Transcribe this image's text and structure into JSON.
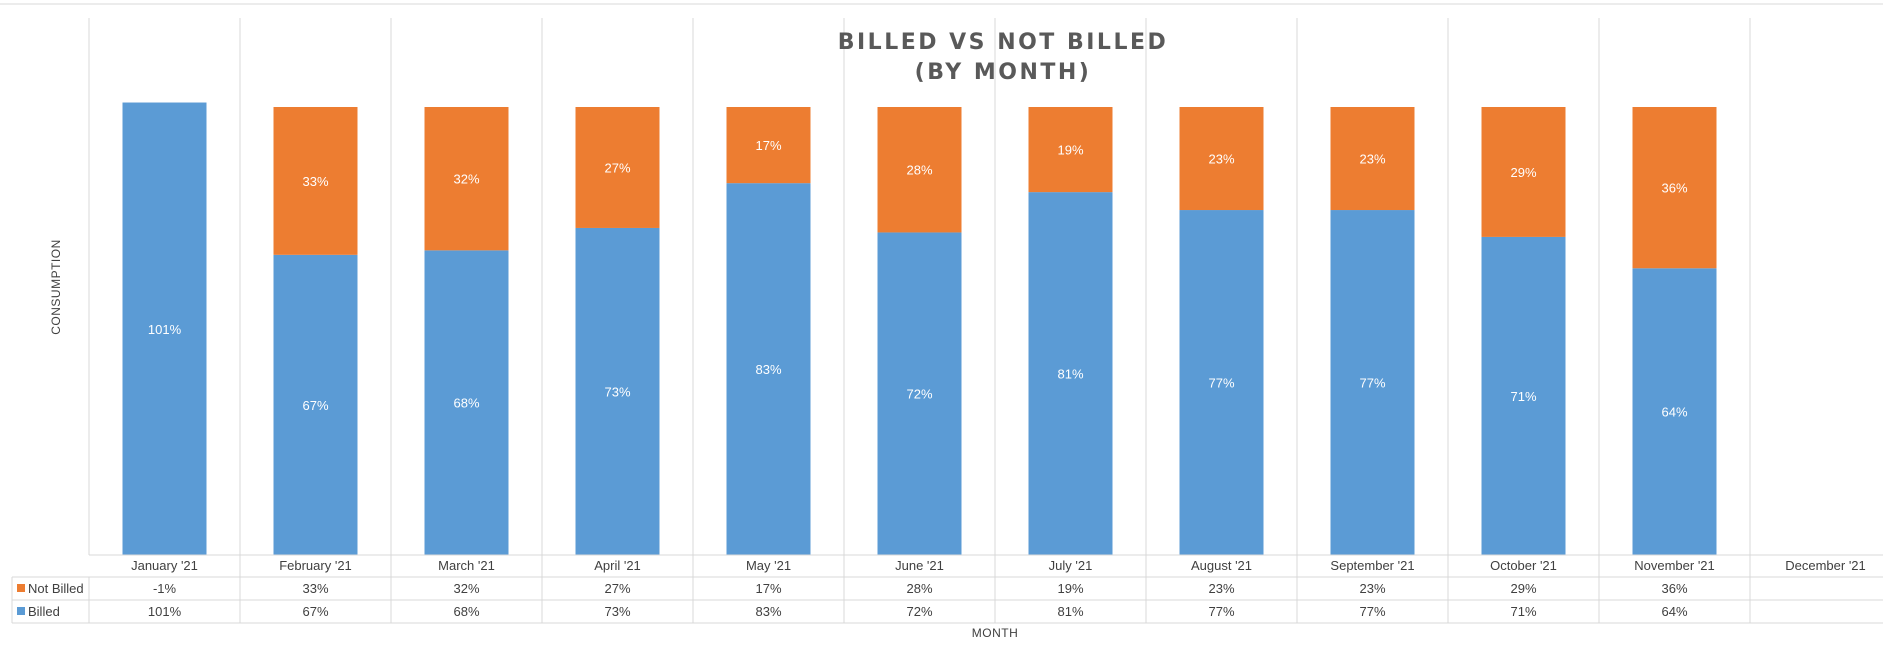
{
  "chart_data": {
    "type": "bar",
    "stacked": true,
    "percent_stacked": true,
    "title": [
      "BILLED VS NOT BILLED",
      "(BY MONTH)"
    ],
    "xlabel": "MONTH",
    "ylabel": "CONSUMPTION",
    "categories": [
      "January '21",
      "February '21",
      "March '21",
      "April '21",
      "May '21",
      "June '21",
      "July '21",
      "August '21",
      "September '21",
      "October '21",
      "November '21",
      "December '21"
    ],
    "series": [
      {
        "name": "Billed",
        "color": "#5B9BD5",
        "values": [
          101,
          67,
          68,
          73,
          83,
          72,
          81,
          77,
          77,
          71,
          64,
          null
        ],
        "labels": [
          "101%",
          "67%",
          "68%",
          "73%",
          "83%",
          "72%",
          "81%",
          "77%",
          "77%",
          "71%",
          "64%",
          ""
        ]
      },
      {
        "name": "Not Billed",
        "color": "#ED7D31",
        "values": [
          -1,
          33,
          32,
          27,
          17,
          28,
          19,
          23,
          23,
          29,
          36,
          null
        ],
        "labels": [
          "-1%",
          "33%",
          "32%",
          "27%",
          "17%",
          "28%",
          "19%",
          "23%",
          "23%",
          "29%",
          "36%",
          ""
        ]
      }
    ],
    "ylim": [
      0,
      100
    ],
    "data_table": true,
    "grid": {
      "vertical_category_lines": true,
      "horizontal": false
    },
    "legend": "data-table"
  }
}
